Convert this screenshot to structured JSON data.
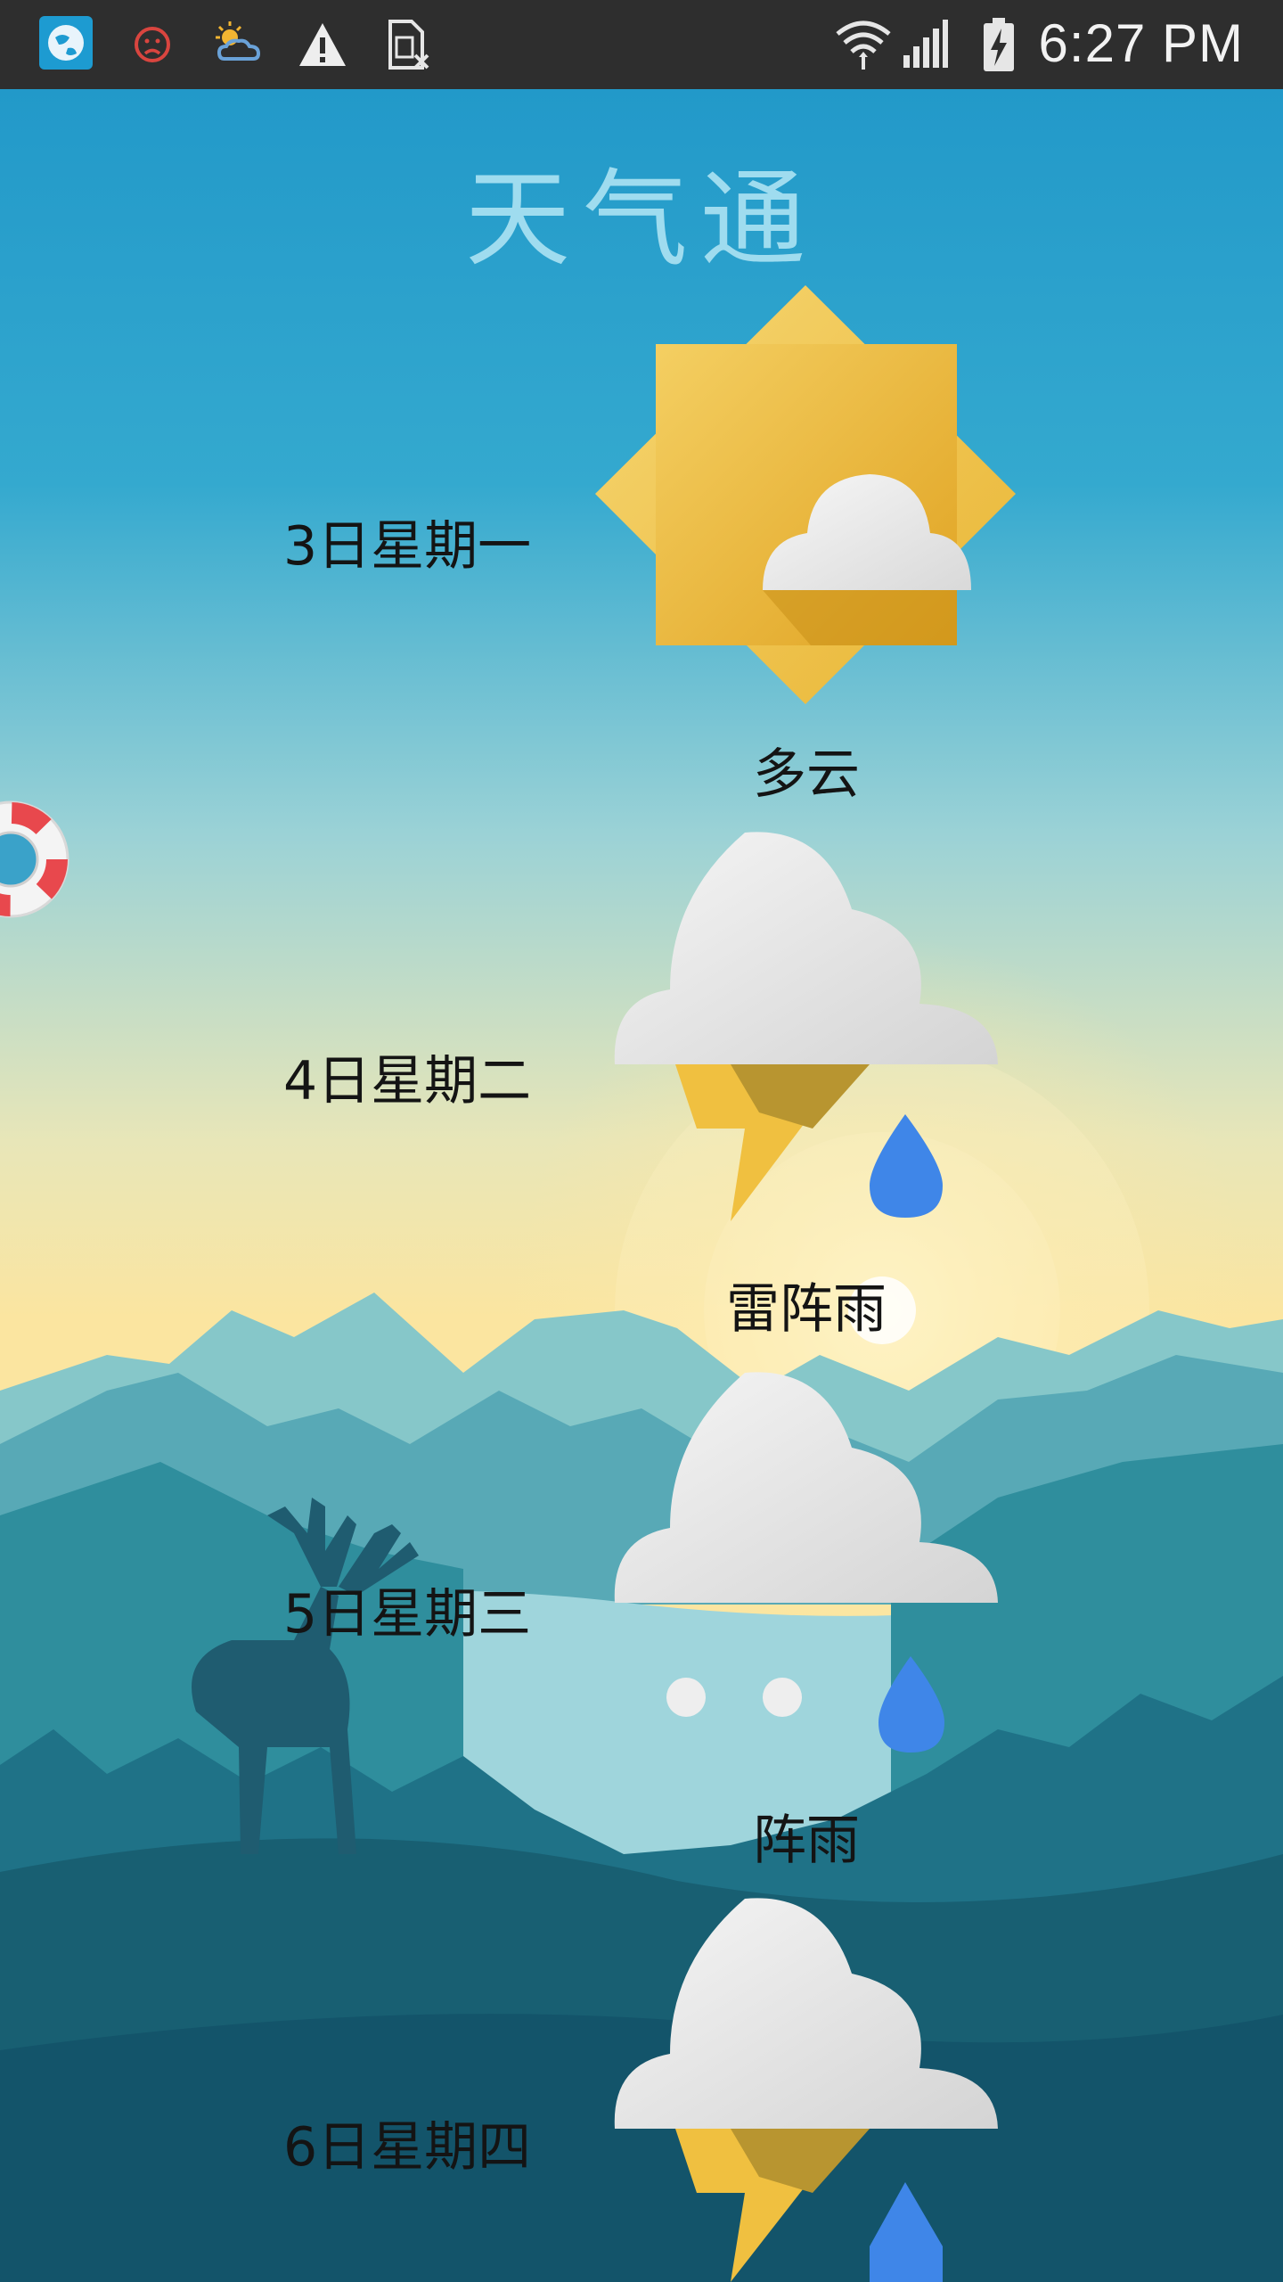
{
  "status_bar": {
    "time": "6:27 PM",
    "icons": [
      "app-globe-icon",
      "sad-face-icon",
      "partly-cloudy-icon",
      "warning-icon",
      "sim-card-icon",
      "wifi-icon",
      "signal-icon",
      "battery-charging-icon"
    ]
  },
  "app": {
    "title": "天气通"
  },
  "forecast": [
    {
      "day": "3日星期一",
      "condition": "多云",
      "icon": "partly-cloudy-icon"
    },
    {
      "day": "4日星期二",
      "condition": "雷阵雨",
      "icon": "thunderstorm-icon"
    },
    {
      "day": "5日星期三",
      "condition": "阵雨",
      "icon": "shower-rain-icon"
    },
    {
      "day": "6日星期四",
      "condition": "",
      "icon": "thunderstorm-icon"
    }
  ],
  "colors": {
    "sky_top": "#2499c9",
    "sky_horizon": "#fbe6a4",
    "mountain": "#3a8fa3",
    "sun": "#f2c14b",
    "cloud": "#ececec",
    "rain_drop": "#3f86e8",
    "lightning": "#f0c040"
  },
  "floating_widget": {
    "icon": "lifebuoy-icon"
  }
}
